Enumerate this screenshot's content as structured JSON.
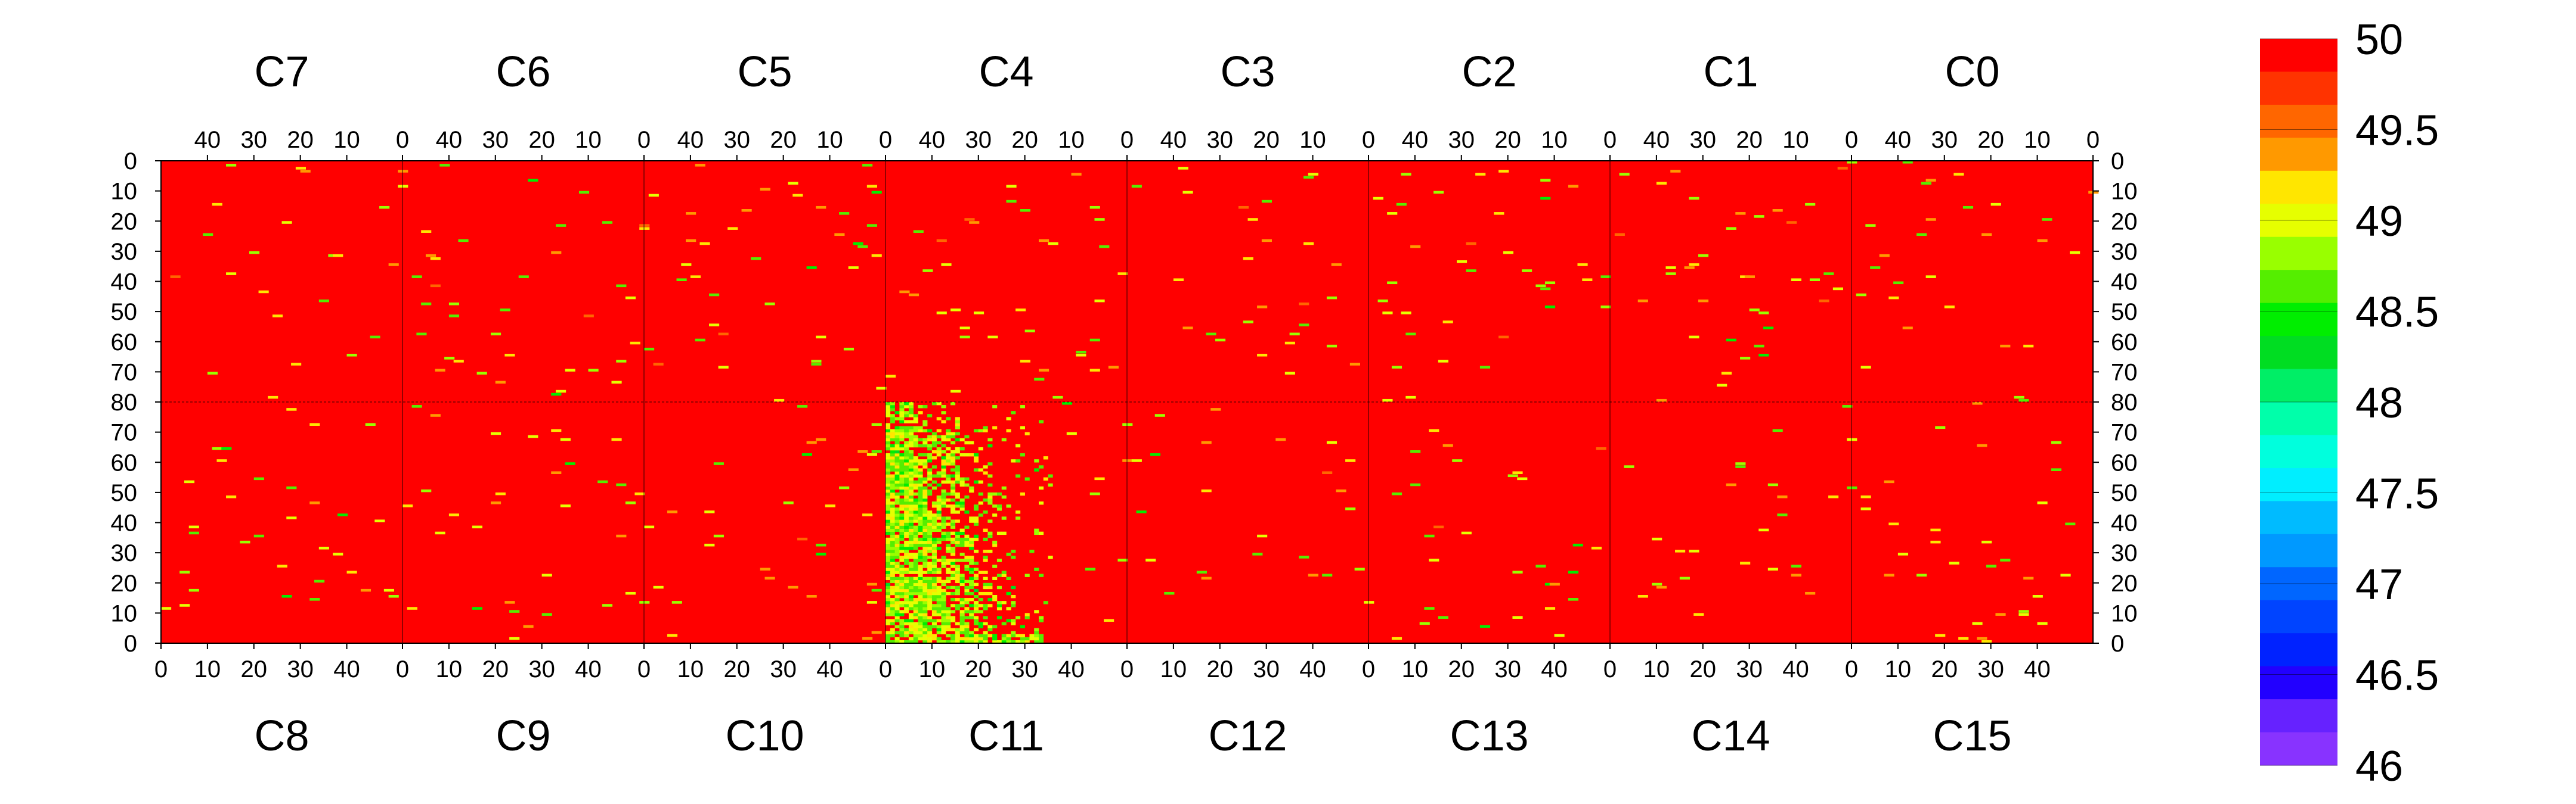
{
  "chart_data": {
    "type": "heatmap",
    "title": "",
    "top_chip_labels": [
      "C7",
      "C6",
      "C5",
      "C4",
      "C3",
      "C2",
      "C1",
      "C0"
    ],
    "bottom_chip_labels": [
      "C8",
      "C9",
      "C10",
      "C11",
      "C12",
      "C13",
      "C14",
      "C15"
    ],
    "top_x_ticks": [
      "40",
      "30",
      "20",
      "10",
      "0"
    ],
    "bottom_x_ticks": [
      "0",
      "10",
      "20",
      "30",
      "40"
    ],
    "top_y_ticks": [
      "0",
      "10",
      "20",
      "30",
      "40",
      "50",
      "60",
      "70",
      "80"
    ],
    "bottom_y_ticks": [
      "80",
      "70",
      "60",
      "50",
      "40",
      "30",
      "20",
      "10",
      "0"
    ],
    "columns_per_chip": 52,
    "rows_per_half": 80,
    "zlim": [
      46,
      50
    ],
    "baseline_value": 50,
    "colorbar": {
      "tick_labels": [
        "50",
        "49.5",
        "49",
        "48.5",
        "48",
        "47.5",
        "47",
        "46.5",
        "46"
      ],
      "tick_values": [
        50,
        49.5,
        49,
        48.5,
        48,
        47.5,
        47,
        46.5,
        46
      ],
      "bands": [
        "#ff0000",
        "#ff3300",
        "#ff6600",
        "#ff9900",
        "#ffe600",
        "#e6ff00",
        "#99ff00",
        "#55ee00",
        "#00ee00",
        "#00dd22",
        "#00ee66",
        "#00ffaa",
        "#00ffdd",
        "#00eeff",
        "#00bbff",
        "#0099ff",
        "#0066ff",
        "#0044ff",
        "#0022ff",
        "#2200ff",
        "#6622ff",
        "#8833ff"
      ]
    },
    "hot_region": {
      "chip": "C11",
      "value_range": [
        48.5,
        49.2
      ],
      "x_range": [
        0,
        35
      ],
      "y_range": [
        0,
        80
      ]
    },
    "scattered_cell_value_range": [
      48.5,
      49.5
    ],
    "grid": true
  }
}
